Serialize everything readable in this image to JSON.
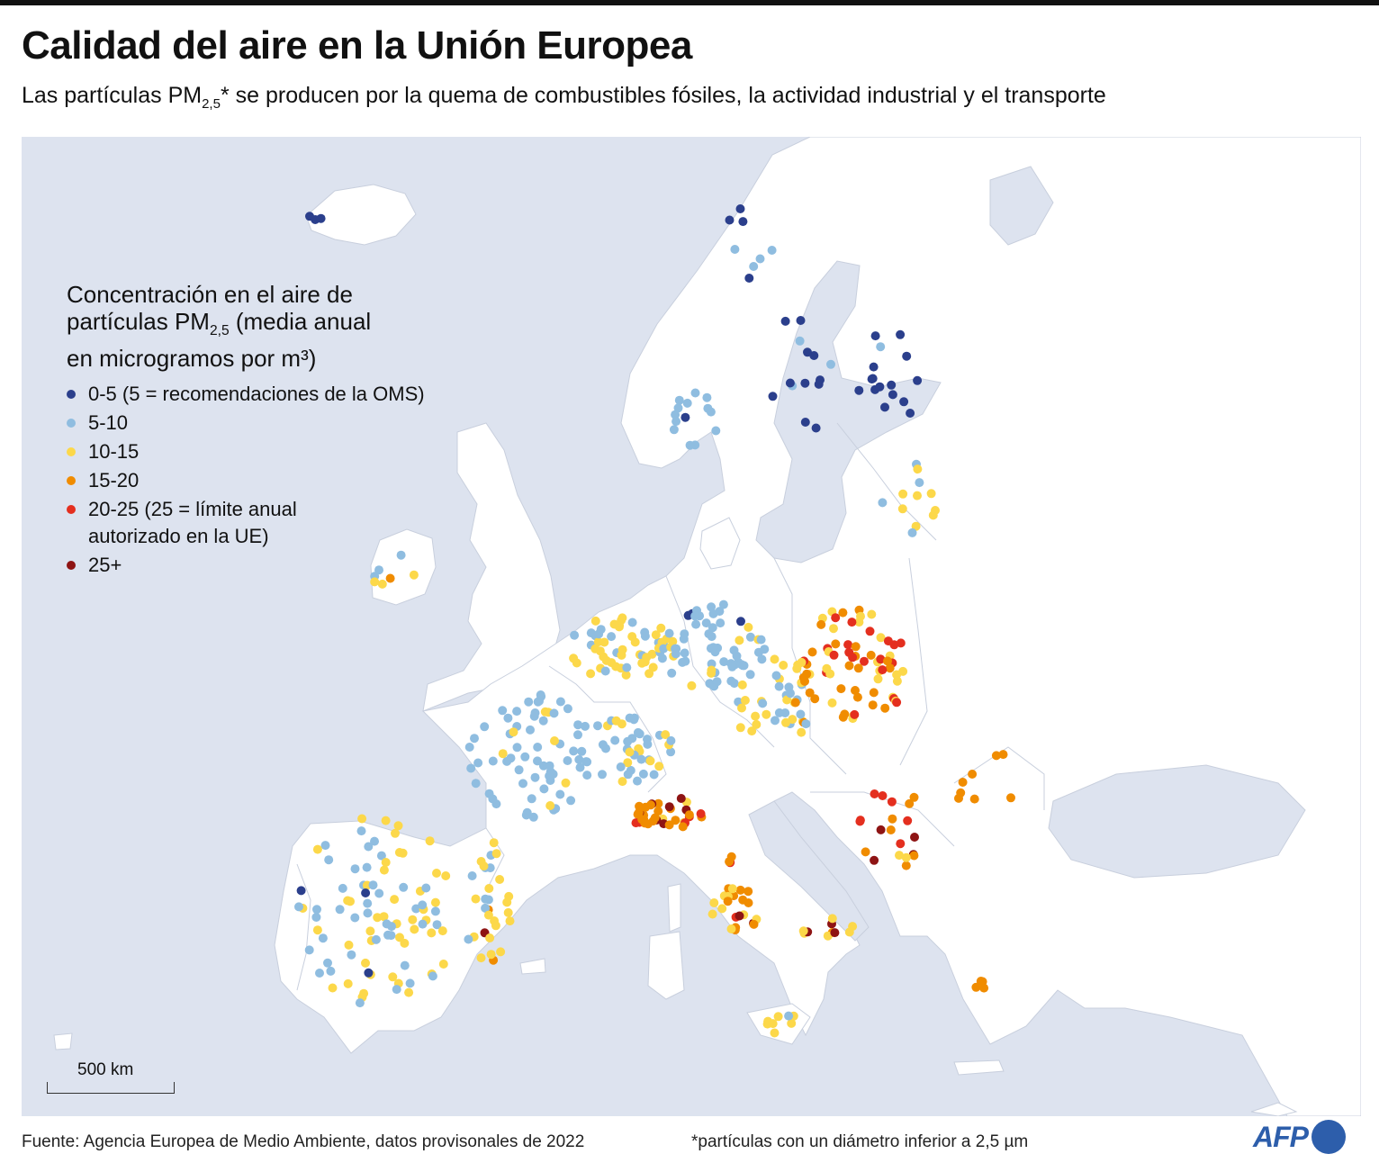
{
  "header": {
    "title": "Calidad del aire en la Unión Europea",
    "subtitle_pre": "Las partículas PM",
    "subtitle_sub": "2,5",
    "subtitle_post": "* se producen por la quema de combustibles fósiles, la actividad industrial y el transporte"
  },
  "legend": {
    "title_line1": "Concentración en el aire de",
    "title_line2_pre": "partículas PM",
    "title_line2_sub": "2,5",
    "title_line2_post": " (media anual",
    "title_line3": "en microgramos por m³)",
    "items": [
      {
        "label": "0-5 (5 = recomendaciones de la OMS)",
        "color": "#2b3f8c"
      },
      {
        "label": "5-10",
        "color": "#8fbde0"
      },
      {
        "label": "10-15",
        "color": "#fcd84a"
      },
      {
        "label": "15-20",
        "color": "#f08c00"
      },
      {
        "label": "20-25 (25 = límite anual autorizado en la UE)",
        "color": "#e42f1f"
      },
      {
        "label": "25+",
        "color": "#8e1414"
      }
    ]
  },
  "scale": {
    "label": "500 km"
  },
  "footer": {
    "source": "Fuente: Agencia Europea de Medio Ambiente, datos provisonales de 2022",
    "footnote": "*partículas con un diámetro inferior a 2,5 µm",
    "logo": "AFP"
  },
  "colors": {
    "sea": "#dde3ef",
    "land": "#ffffff",
    "border": "#c8cfdd"
  }
}
